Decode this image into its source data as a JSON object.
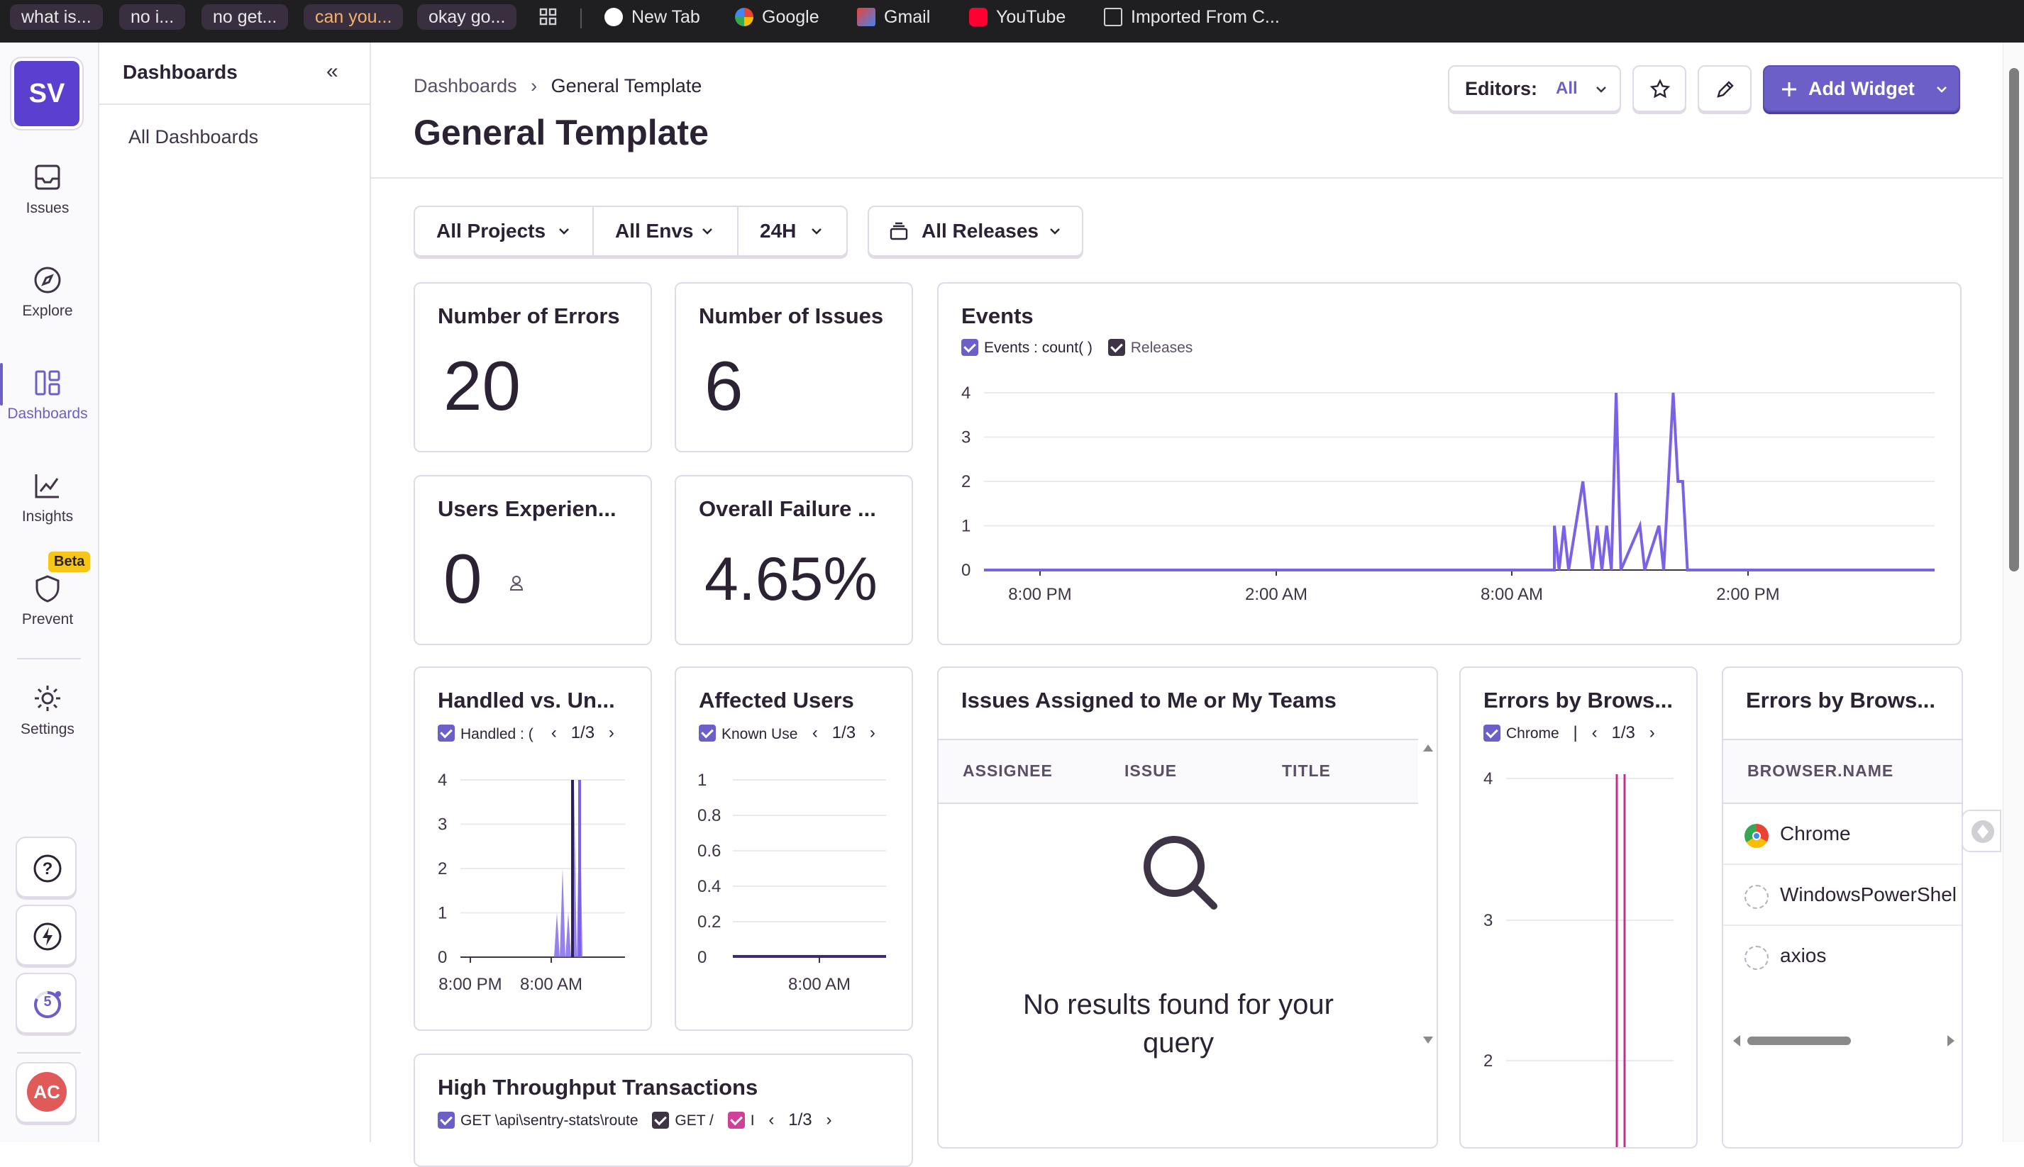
{
  "bookmarks": [
    {
      "label": "what is...",
      "style": "pill"
    },
    {
      "label": "no i...",
      "style": "pill"
    },
    {
      "label": "no get...",
      "style": "pill"
    },
    {
      "label": "can you...",
      "style": "pill-orange"
    },
    {
      "label": "okay go...",
      "style": "pill"
    },
    {
      "label": "New Tab"
    },
    {
      "label": "Google"
    },
    {
      "label": "Gmail"
    },
    {
      "label": "YouTube"
    },
    {
      "label": "Imported From C..."
    }
  ],
  "rail": {
    "org_initials": "SV",
    "items": [
      {
        "label": "Issues",
        "icon": "inbox-icon"
      },
      {
        "label": "Explore",
        "icon": "compass-icon"
      },
      {
        "label": "Dashboards",
        "icon": "dashboards-icon"
      },
      {
        "label": "Insights",
        "icon": "chart-icon"
      },
      {
        "label": "Prevent",
        "icon": "shield-icon"
      },
      {
        "label": "Settings",
        "icon": "gear-icon"
      }
    ],
    "beta_label": "Beta",
    "onboarding_count": "5",
    "user_initials": "AC"
  },
  "secondary_nav": {
    "title": "Dashboards",
    "collapse_icon": "«",
    "items": [
      "All Dashboards"
    ]
  },
  "header": {
    "breadcrumb": [
      "Dashboards",
      "General Template"
    ],
    "breadcrumb_separator": "›",
    "title": "General Template",
    "editors_label": "Editors:",
    "editors_value": "All",
    "add_widget_label": "Add Widget"
  },
  "filters": {
    "projects": "All Projects",
    "envs": "All Envs",
    "period": "24H",
    "releases": "All Releases"
  },
  "widgets": {
    "errors": {
      "title": "Number of Errors",
      "value": "20"
    },
    "issues": {
      "title": "Number of Issues",
      "value": "6"
    },
    "users_exp": {
      "title": "Users Experien...",
      "value": "0"
    },
    "failure": {
      "title": "Overall Failure ...",
      "value": "4.65%"
    },
    "events": {
      "title": "Events",
      "legend": [
        "Events : count( )",
        "Releases"
      ]
    },
    "handled": {
      "title": "Handled vs. Un...",
      "legend": "Handled : (",
      "pager": "1/3"
    },
    "affected": {
      "title": "Affected Users",
      "legend": "Known Use",
      "pager": "1/3"
    },
    "assigned": {
      "title": "Issues Assigned to Me or My Teams",
      "columns": [
        "ASSIGNEE",
        "ISSUE",
        "TITLE"
      ],
      "empty": [
        "No results found for your",
        "query"
      ]
    },
    "browser_chart": {
      "title": "Errors by Brows...",
      "legend": "Chrome",
      "legend_sep": "|",
      "pager": "1/3"
    },
    "browser_table": {
      "title": "Errors by Brows...",
      "column": "BROWSER.NAME",
      "rows": [
        "Chrome",
        "WindowsPowerShel",
        "axios"
      ]
    },
    "throughput": {
      "title": "High Throughput Transactions",
      "legend": [
        "GET \\api\\sentry-stats\\route",
        "GET /",
        "I"
      ],
      "pager": "1/3"
    }
  },
  "chart_data": [
    {
      "type": "line",
      "title": "Events",
      "series": [
        {
          "name": "Events : count( )",
          "color": "#7b61e8",
          "points": [
            [
              0,
              0
            ],
            [
              0.6,
              0
            ],
            [
              0.6,
              1
            ],
            [
              0.605,
              0
            ],
            [
              0.61,
              1
            ],
            [
              0.615,
              0
            ],
            [
              0.63,
              2
            ],
            [
              0.64,
              0
            ],
            [
              0.645,
              1
            ],
            [
              0.65,
              0
            ],
            [
              0.655,
              1
            ],
            [
              0.66,
              0
            ],
            [
              0.665,
              4
            ],
            [
              0.67,
              0
            ],
            [
              0.69,
              1
            ],
            [
              0.695,
              0
            ],
            [
              0.71,
              1
            ],
            [
              0.715,
              0
            ],
            [
              0.725,
              4
            ],
            [
              0.73,
              2
            ],
            [
              0.735,
              2
            ],
            [
              0.74,
              0
            ],
            [
              1,
              0
            ]
          ]
        }
      ],
      "x_ticks": [
        "8:00 PM",
        "2:00 AM",
        "8:00 AM",
        "2:00 PM"
      ],
      "y_ticks": [
        "0",
        "1",
        "2",
        "3",
        "4"
      ],
      "ylim": [
        0,
        4
      ]
    },
    {
      "type": "area",
      "title": "Handled vs. Un...",
      "series": [
        {
          "name": "Handled : (",
          "color": "#7b61e8"
        }
      ],
      "x_ticks": [
        "8:00 PM",
        "8:00 AM"
      ],
      "y_ticks": [
        "0",
        "1",
        "2",
        "3",
        "4"
      ],
      "ylim": [
        0,
        4
      ]
    },
    {
      "type": "line",
      "title": "Affected Users",
      "series": [
        {
          "name": "Known Use",
          "color": "#3e2a6e"
        }
      ],
      "x_ticks": [
        "8:00 AM"
      ],
      "y_ticks": [
        "0",
        "0.2",
        "0.4",
        "0.6",
        "0.8",
        "1"
      ],
      "ylim": [
        0,
        1
      ]
    },
    {
      "type": "line",
      "title": "Errors by Brows...",
      "series": [
        {
          "name": "Chrome",
          "color": "#c0308a"
        }
      ],
      "y_ticks": [
        "2",
        "3",
        "4"
      ]
    }
  ],
  "colors": {
    "accent": "#6c5fc7",
    "line": "#7b61e8",
    "pink": "#c0308a"
  }
}
